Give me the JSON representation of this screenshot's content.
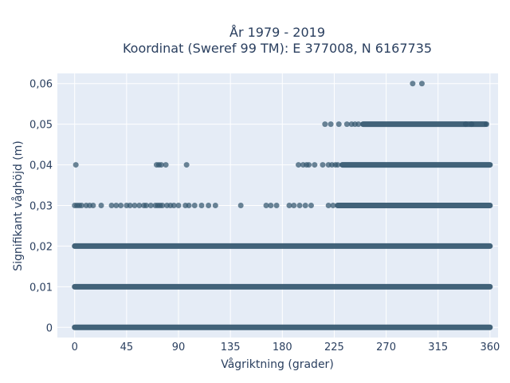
{
  "chart_data": {
    "type": "scatter",
    "title": "År 1979 - 2019",
    "subtitle": "Koordinat (Sweref 99 TM): E 377008, N 6167735",
    "xlabel": "Vågriktning (grader)",
    "ylabel": "Signifikant våghöjd (m)",
    "xlim": [
      -15,
      367
    ],
    "ylim": [
      -0.0025,
      0.0625
    ],
    "x_ticks": [
      0,
      45,
      90,
      135,
      180,
      225,
      270,
      315,
      360
    ],
    "x_tick_labels": [
      "0",
      "45",
      "90",
      "135",
      "180",
      "225",
      "270",
      "315",
      "360"
    ],
    "y_ticks": [
      0,
      0.01,
      0.02,
      0.03,
      0.04,
      0.05,
      0.06
    ],
    "y_tick_labels": [
      "0",
      "0,01",
      "0,02",
      "0,03",
      "0,04",
      "0,05",
      "0,06"
    ],
    "grid": true,
    "marker_color": "#33566e",
    "plot_background": "#e5ecf6",
    "series": [
      {
        "points_note": "",
        "bands": [
          {
            "y": 0,
            "x_segments": [
              [
                0,
                360
              ]
            ]
          },
          {
            "y": 0.01,
            "x_segments": [
              [
                0,
                360
              ]
            ]
          },
          {
            "y": 0.02,
            "x_segments": [
              [
                0,
                360
              ]
            ]
          },
          {
            "y": 0.03,
            "x_segments": [
              [
                228,
                360
              ]
            ]
          },
          {
            "y": 0.04,
            "x_segments": [
              [
                232,
                360
              ]
            ]
          },
          {
            "y": 0.05,
            "x_segments": [
              [
                250,
                356
              ]
            ]
          }
        ],
        "points": [
          [
            293,
            0.06
          ],
          [
            301,
            0.06
          ],
          [
            217,
            0.05
          ],
          [
            222,
            0.05
          ],
          [
            229,
            0.05
          ],
          [
            236,
            0.05
          ],
          [
            240,
            0.05
          ],
          [
            243,
            0.05
          ],
          [
            246,
            0.05
          ],
          [
            339,
            0.05
          ],
          [
            344,
            0.05
          ],
          [
            357,
            0.05
          ],
          [
            1,
            0.04
          ],
          [
            71,
            0.04
          ],
          [
            73,
            0.04
          ],
          [
            75,
            0.04
          ],
          [
            79,
            0.04
          ],
          [
            97,
            0.04
          ],
          [
            194,
            0.04
          ],
          [
            198,
            0.04
          ],
          [
            201,
            0.04
          ],
          [
            203,
            0.04
          ],
          [
            208,
            0.04
          ],
          [
            215,
            0.04
          ],
          [
            220,
            0.04
          ],
          [
            223,
            0.04
          ],
          [
            226,
            0.04
          ],
          [
            228,
            0.04
          ],
          [
            0,
            0.03
          ],
          [
            2,
            0.03
          ],
          [
            4,
            0.03
          ],
          [
            6,
            0.03
          ],
          [
            10,
            0.03
          ],
          [
            13,
            0.03
          ],
          [
            16,
            0.03
          ],
          [
            23,
            0.03
          ],
          [
            32,
            0.03
          ],
          [
            36,
            0.03
          ],
          [
            40,
            0.03
          ],
          [
            45,
            0.03
          ],
          [
            48,
            0.03
          ],
          [
            52,
            0.03
          ],
          [
            56,
            0.03
          ],
          [
            60,
            0.03
          ],
          [
            62,
            0.03
          ],
          [
            66,
            0.03
          ],
          [
            70,
            0.03
          ],
          [
            72,
            0.03
          ],
          [
            74,
            0.03
          ],
          [
            76,
            0.03
          ],
          [
            80,
            0.03
          ],
          [
            83,
            0.03
          ],
          [
            86,
            0.03
          ],
          [
            90,
            0.03
          ],
          [
            96,
            0.03
          ],
          [
            99,
            0.03
          ],
          [
            104,
            0.03
          ],
          [
            110,
            0.03
          ],
          [
            116,
            0.03
          ],
          [
            122,
            0.03
          ],
          [
            144,
            0.03
          ],
          [
            166,
            0.03
          ],
          [
            170,
            0.03
          ],
          [
            175,
            0.03
          ],
          [
            186,
            0.03
          ],
          [
            190,
            0.03
          ],
          [
            195,
            0.03
          ],
          [
            200,
            0.03
          ],
          [
            205,
            0.03
          ],
          [
            220,
            0.03
          ],
          [
            224,
            0.03
          ]
        ]
      }
    ]
  }
}
